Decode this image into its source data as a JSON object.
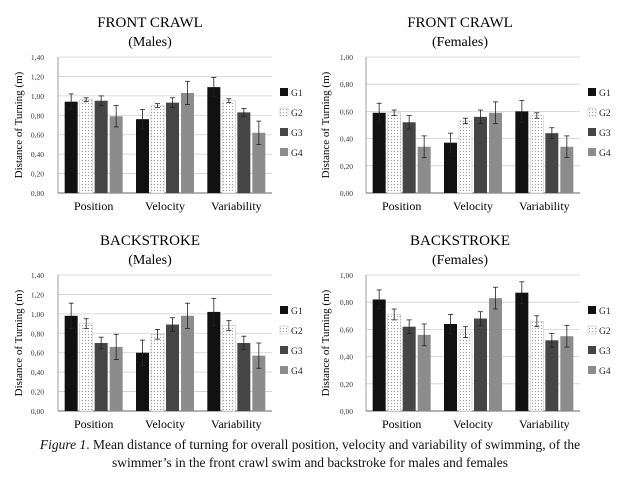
{
  "chart_data": [
    {
      "type": "bar",
      "title": "FRONT CRAWL",
      "subtitle": "(Males)",
      "ylabel": "Distance of Turning (m)",
      "xlabel": "",
      "ylim": [
        0,
        1.4
      ],
      "yticks": [
        0,
        0.2,
        0.4,
        0.6,
        0.8,
        1.0,
        1.2,
        1.4
      ],
      "ytick_labels": [
        "0,00",
        "0,20",
        "0,40",
        "0,60",
        "0,80",
        "1,00",
        "1,20",
        "1,40"
      ],
      "categories": [
        "Position",
        "Velocity",
        "Variability"
      ],
      "series": [
        {
          "name": "G1",
          "values": [
            0.94,
            0.76,
            1.09
          ],
          "errors": [
            0.08,
            0.1,
            0.1
          ]
        },
        {
          "name": "G2",
          "values": [
            0.96,
            0.9,
            0.95
          ],
          "errors": [
            0.02,
            0.02,
            0.02
          ]
        },
        {
          "name": "G3",
          "values": [
            0.95,
            0.93,
            0.83
          ],
          "errors": [
            0.05,
            0.05,
            0.04
          ]
        },
        {
          "name": "G4",
          "values": [
            0.79,
            1.03,
            0.62
          ],
          "errors": [
            0.11,
            0.12,
            0.12
          ]
        }
      ],
      "legend_position": "right",
      "grid": true
    },
    {
      "type": "bar",
      "title": "FRONT CRAWL",
      "subtitle": "(Females)",
      "ylabel": "Distance of Turning (m)",
      "xlabel": "",
      "ylim": [
        0,
        1.0
      ],
      "yticks": [
        0,
        0.2,
        0.4,
        0.6,
        0.8,
        1.0
      ],
      "ytick_labels": [
        "0,00",
        "0,20",
        "0,40",
        "0,60",
        "0,80",
        "1,00"
      ],
      "categories": [
        "Position",
        "Velocity",
        "Variability"
      ],
      "series": [
        {
          "name": "G1",
          "values": [
            0.59,
            0.37,
            0.6
          ],
          "errors": [
            0.07,
            0.07,
            0.08
          ]
        },
        {
          "name": "G2",
          "values": [
            0.59,
            0.53,
            0.57
          ],
          "errors": [
            0.02,
            0.02,
            0.02
          ]
        },
        {
          "name": "G3",
          "values": [
            0.52,
            0.56,
            0.44
          ],
          "errors": [
            0.05,
            0.05,
            0.04
          ]
        },
        {
          "name": "G4",
          "values": [
            0.34,
            0.59,
            0.34
          ],
          "errors": [
            0.08,
            0.08,
            0.08
          ]
        }
      ],
      "legend_position": "right",
      "grid": true
    },
    {
      "type": "bar",
      "title": "BACKSTROKE",
      "subtitle": "(Males)",
      "ylabel": "Distance of Turning (m)",
      "xlabel": "",
      "ylim": [
        0,
        1.4
      ],
      "yticks": [
        0,
        0.2,
        0.4,
        0.6,
        0.8,
        1.0,
        1.2,
        1.4
      ],
      "ytick_labels": [
        "0,00",
        "0,20",
        "0,40",
        "0,60",
        "0,80",
        "1,00",
        "1,20",
        "1,40"
      ],
      "categories": [
        "Position",
        "Velocity",
        "Variability"
      ],
      "series": [
        {
          "name": "G1",
          "values": [
            0.98,
            0.6,
            1.02
          ],
          "errors": [
            0.13,
            0.13,
            0.14
          ]
        },
        {
          "name": "G2",
          "values": [
            0.9,
            0.79,
            0.88
          ],
          "errors": [
            0.05,
            0.05,
            0.05
          ]
        },
        {
          "name": "G3",
          "values": [
            0.7,
            0.89,
            0.7
          ],
          "errors": [
            0.06,
            0.07,
            0.07
          ]
        },
        {
          "name": "G4",
          "values": [
            0.66,
            0.98,
            0.57
          ],
          "errors": [
            0.13,
            0.13,
            0.13
          ]
        }
      ],
      "legend_position": "right",
      "grid": true
    },
    {
      "type": "bar",
      "title": "BACKSTROKE",
      "subtitle": "(Females)",
      "ylabel": "Distance of Turning (m)",
      "xlabel": "",
      "ylim": [
        0,
        1.0
      ],
      "yticks": [
        0,
        0.2,
        0.4,
        0.6,
        0.8,
        1.0
      ],
      "ytick_labels": [
        "0,00",
        "0,20",
        "0,40",
        "0,60",
        "0,80",
        "1,00"
      ],
      "categories": [
        "Position",
        "Velocity",
        "Variability"
      ],
      "series": [
        {
          "name": "G1",
          "values": [
            0.82,
            0.64,
            0.87
          ],
          "errors": [
            0.07,
            0.07,
            0.08
          ]
        },
        {
          "name": "G2",
          "values": [
            0.71,
            0.58,
            0.66
          ],
          "errors": [
            0.04,
            0.04,
            0.04
          ]
        },
        {
          "name": "G3",
          "values": [
            0.62,
            0.68,
            0.52
          ],
          "errors": [
            0.05,
            0.05,
            0.05
          ]
        },
        {
          "name": "G4",
          "values": [
            0.56,
            0.83,
            0.55
          ],
          "errors": [
            0.08,
            0.08,
            0.08
          ]
        }
      ],
      "legend_position": "right",
      "grid": true
    }
  ],
  "series_colors": [
    "#111111",
    "#f4f4f4",
    "#454545",
    "#8c8c8c"
  ],
  "caption": {
    "label": "Figure 1",
    "text": ". Mean distance of turning for overall position, velocity and variability of swimming, of the swimmer’s in the front crawl swim and backstroke for males and females"
  }
}
